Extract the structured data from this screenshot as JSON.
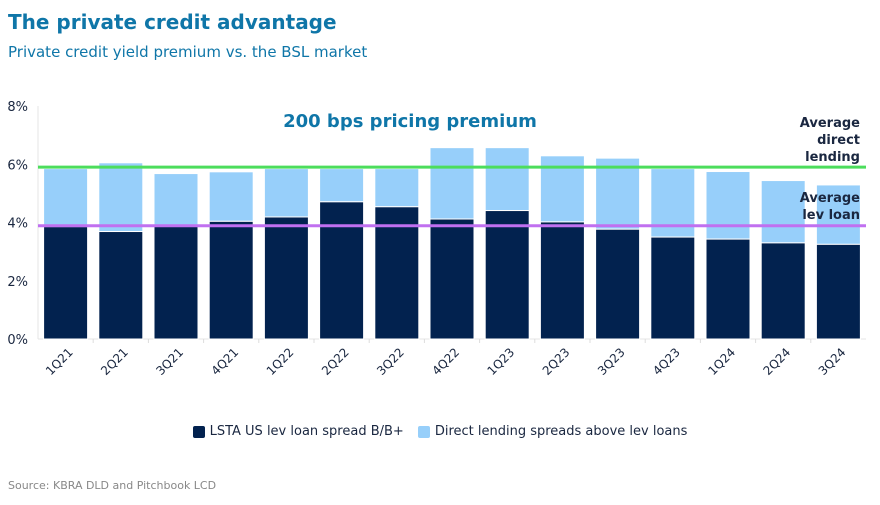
{
  "title": "The private credit advantage",
  "subtitle": "Private credit yield premium vs. the BSL market",
  "source": "Source: KBRA DLD and Pitchbook LCD",
  "colors": {
    "lev": "#02224f",
    "direct": "#97cffa",
    "avg_direct": "#4cdd5c",
    "avg_lev": "#c070f0",
    "annotation": "#0f76a8"
  },
  "chart_data": {
    "type": "bar",
    "stacked": true,
    "categories": [
      "1Q21",
      "2Q21",
      "3Q21",
      "4Q21",
      "1Q22",
      "2Q22",
      "3Q22",
      "4Q22",
      "1Q23",
      "2Q23",
      "3Q23",
      "4Q23",
      "1Q24",
      "2Q24",
      "3Q24"
    ],
    "series": [
      {
        "name": "LSTA US lev loan spread B/B+",
        "values": [
          3.86,
          3.69,
          3.9,
          4.04,
          4.19,
          4.71,
          4.54,
          4.12,
          4.41,
          4.02,
          3.77,
          3.5,
          3.43,
          3.3,
          3.25
        ]
      },
      {
        "name": "Direct lending spreads above lev loans",
        "values": [
          1.99,
          2.36,
          1.78,
          1.7,
          1.66,
          1.14,
          1.31,
          2.45,
          2.16,
          2.27,
          2.44,
          2.35,
          2.32,
          2.14,
          2.04
        ]
      }
    ],
    "ylim": [
      0,
      8
    ],
    "yticks": [
      0,
      2,
      4,
      6,
      8
    ],
    "ytick_labels": [
      "0%",
      "2%",
      "4%",
      "6%",
      "8%"
    ],
    "reference_lines": [
      {
        "label": "Average direct lending",
        "label_lines": [
          "Average",
          "direct",
          "lending"
        ],
        "value": 5.9
      },
      {
        "label": "Average lev loan",
        "label_lines": [
          "Average",
          "lev loan"
        ],
        "value": 3.89
      }
    ],
    "annotation": "200 bps pricing premium",
    "legend_position": "bottom-center"
  }
}
